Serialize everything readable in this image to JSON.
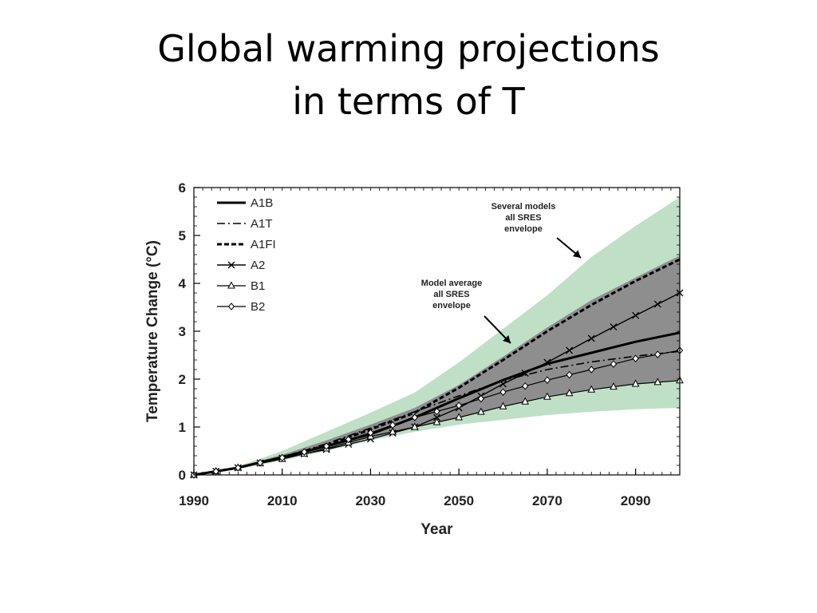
{
  "slide": {
    "title_line1": "Global warming projections",
    "title_line2": "in terms of T"
  },
  "chart_data": {
    "type": "line",
    "xlabel": "Year",
    "ylabel": "Temperature Change (°C)",
    "xlim": [
      1990,
      2100
    ],
    "ylim": [
      0,
      6
    ],
    "xticks": [
      1990,
      2010,
      2030,
      2050,
      2070,
      2090
    ],
    "yticks": [
      0,
      1,
      2,
      3,
      4,
      5,
      6
    ],
    "grid": false,
    "legend_position": "top-left",
    "x": [
      1990,
      2000,
      2010,
      2020,
      2030,
      2040,
      2050,
      2060,
      2070,
      2080,
      2090,
      2100
    ],
    "series": [
      {
        "name": "A1B",
        "style": "solid-thick",
        "values": [
          0,
          0.15,
          0.37,
          0.6,
          0.85,
          1.2,
          1.6,
          1.98,
          2.32,
          2.55,
          2.78,
          2.97
        ]
      },
      {
        "name": "A1T",
        "style": "dash-dot",
        "values": [
          0,
          0.15,
          0.37,
          0.65,
          0.98,
          1.32,
          1.65,
          1.97,
          2.2,
          2.36,
          2.48,
          2.58
        ]
      },
      {
        "name": "A1FI",
        "style": "dashed-thick",
        "values": [
          0,
          0.15,
          0.37,
          0.62,
          0.95,
          1.3,
          1.82,
          2.4,
          3.0,
          3.55,
          4.05,
          4.5
        ]
      },
      {
        "name": "A2",
        "style": "cross-markers",
        "values": [
          0,
          0.15,
          0.35,
          0.53,
          0.75,
          1.0,
          1.4,
          1.9,
          2.35,
          2.85,
          3.33,
          3.8
        ]
      },
      {
        "name": "B1",
        "style": "triangle-markers",
        "values": [
          0,
          0.15,
          0.33,
          0.55,
          0.8,
          1.0,
          1.2,
          1.43,
          1.63,
          1.78,
          1.9,
          1.97
        ]
      },
      {
        "name": "B2",
        "style": "diamond-markers",
        "values": [
          0,
          0.15,
          0.36,
          0.6,
          0.88,
          1.2,
          1.45,
          1.73,
          1.98,
          2.2,
          2.43,
          2.6
        ]
      }
    ],
    "envelopes": [
      {
        "label_lines": [
          "Several models",
          "all SRES",
          "envelope"
        ],
        "color": "#bfe0c6",
        "lower": [
          0,
          0.12,
          0.3,
          0.5,
          0.72,
          0.9,
          1.05,
          1.15,
          1.25,
          1.32,
          1.37,
          1.4
        ],
        "upper": [
          0,
          0.18,
          0.5,
          0.9,
          1.3,
          1.72,
          2.35,
          3.05,
          3.75,
          4.55,
          5.2,
          5.8
        ]
      },
      {
        "label_lines": [
          "Model average",
          "all SRES",
          "envelope"
        ],
        "color": "#8e8e8e",
        "lower": [
          0,
          0.14,
          0.33,
          0.55,
          0.78,
          1.0,
          1.2,
          1.43,
          1.63,
          1.78,
          1.9,
          1.97
        ],
        "upper": [
          0,
          0.17,
          0.42,
          0.72,
          1.05,
          1.4,
          1.88,
          2.47,
          3.08,
          3.65,
          4.12,
          4.58
        ]
      }
    ],
    "colors": {
      "envelope_outer": "#bfe0c6",
      "envelope_inner": "#8e8e8e",
      "lines": "#000000"
    }
  }
}
